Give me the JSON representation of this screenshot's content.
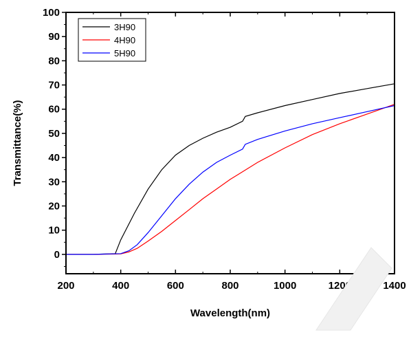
{
  "chart_data": {
    "type": "line",
    "title": "",
    "xlabel": "Wavelength(nm)",
    "ylabel": "Transmittance(%)",
    "xlim": [
      200,
      1400
    ],
    "ylim": [
      -8,
      100
    ],
    "xticks": [
      200,
      400,
      600,
      800,
      1000,
      1200,
      1400
    ],
    "yticks": [
      0,
      10,
      20,
      30,
      40,
      50,
      60,
      70,
      80,
      90,
      100
    ],
    "grid": false,
    "legend_position": "top-left",
    "series": [
      {
        "name": "3H90",
        "color": "#000000",
        "x": [
          200,
          300,
          380,
          400,
          450,
          500,
          550,
          600,
          650,
          700,
          750,
          800,
          845,
          850,
          855,
          900,
          1000,
          1100,
          1200,
          1300,
          1400
        ],
        "y": [
          0,
          0,
          0.3,
          6,
          17,
          27,
          35,
          41,
          45,
          48,
          50.5,
          52.5,
          55,
          56,
          57,
          58.5,
          61.5,
          64,
          66.5,
          68.5,
          70.5
        ]
      },
      {
        "name": "4H90",
        "color": "#ff0000",
        "x": [
          200,
          300,
          400,
          430,
          460,
          500,
          550,
          600,
          650,
          700,
          750,
          800,
          850,
          900,
          1000,
          1100,
          1200,
          1300,
          1400
        ],
        "y": [
          0,
          0,
          0.2,
          1,
          2.5,
          5.5,
          9.5,
          14,
          18.5,
          23,
          27,
          31,
          34.5,
          38,
          44,
          49.5,
          54,
          58,
          62
        ]
      },
      {
        "name": "5H90",
        "color": "#0000ff",
        "x": [
          200,
          300,
          400,
          430,
          460,
          500,
          550,
          600,
          650,
          700,
          750,
          800,
          845,
          850,
          855,
          900,
          1000,
          1100,
          1200,
          1300,
          1400
        ],
        "y": [
          0,
          0,
          0.3,
          1.5,
          4,
          9,
          16,
          23,
          29,
          34,
          38,
          41,
          43.5,
          44.5,
          45.5,
          47.5,
          51,
          54,
          56.5,
          59,
          61.5
        ]
      }
    ]
  }
}
